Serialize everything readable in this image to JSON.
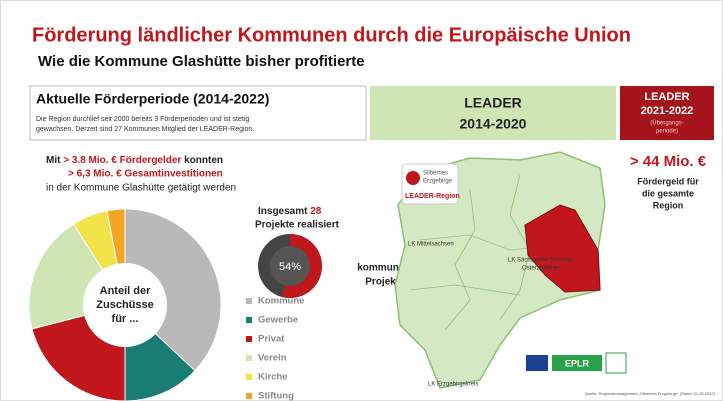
{
  "title": "Förderung ländlicher Kommunen durch die Europäische Union",
  "subtitle": "Wie die Kommune Glashütte bisher profitierte",
  "period": {
    "heading": "Aktuelle Förderperiode (2014-2022)",
    "text": [
      "Die Region durchlief seit 2000 bereits 3 Förderperioden und ist stetig",
      "gewachsen. Derzeit sind 27 Kommunen Mitglied der LEADER-Region."
    ]
  },
  "leader_current": {
    "line1": "LEADER",
    "line2": "2014-2020"
  },
  "leader_next": {
    "line1": "LEADER",
    "line2": "2021-2022",
    "note1": "(Übergangs-",
    "note2": "periode)"
  },
  "funding": {
    "prefix": "Mit",
    "amount": "> 3.8 Mio. € Fördergelder",
    "middle": "konnten",
    "investment": "> 6,3 Mio. € Gesamtinvestitionen",
    "suffix": "in der Kommune Glashütte getätigt werden"
  },
  "projects": {
    "prefix": "Insgesamt",
    "count": "28",
    "suffix": "Projekte realisiert"
  },
  "donut": {
    "value": 54,
    "label": "54%",
    "caption1": "kommunale",
    "caption2": "Projekte"
  },
  "region": {
    "amount": "> 44 Mio. €",
    "line1": "Fördergeld für",
    "line2": "die gesamte",
    "line3": "Region"
  },
  "map": {
    "logo1": "Silbernes",
    "logo2": "Erzgebirge",
    "logo3": "LEADER-Region",
    "district1": "LK Mittelsachsen",
    "district2a": "LK Sächsische Schweiz-",
    "district2b": "Osterzgebirge",
    "district3": "LK Erzgebirgskreis",
    "badge": "EPLR"
  },
  "source": "Quelle: Regionalmanagement „Silbernes Erzgebirge“ (Stand: 01.05.2022)",
  "chart_data": {
    "type": "pie",
    "center_label": [
      "Anteil der",
      "Zuschüsse",
      "für ..."
    ],
    "categories": [
      "Kommune",
      "Gewerbe",
      "Privat",
      "Verein",
      "Kirche",
      "Stiftung"
    ],
    "values": [
      37,
      13,
      21,
      20,
      6,
      3
    ],
    "colors": [
      "#b9b9b9",
      "#1a7d74",
      "#c0161c",
      "#cfe6b4",
      "#f2e34a",
      "#f4a522"
    ]
  }
}
